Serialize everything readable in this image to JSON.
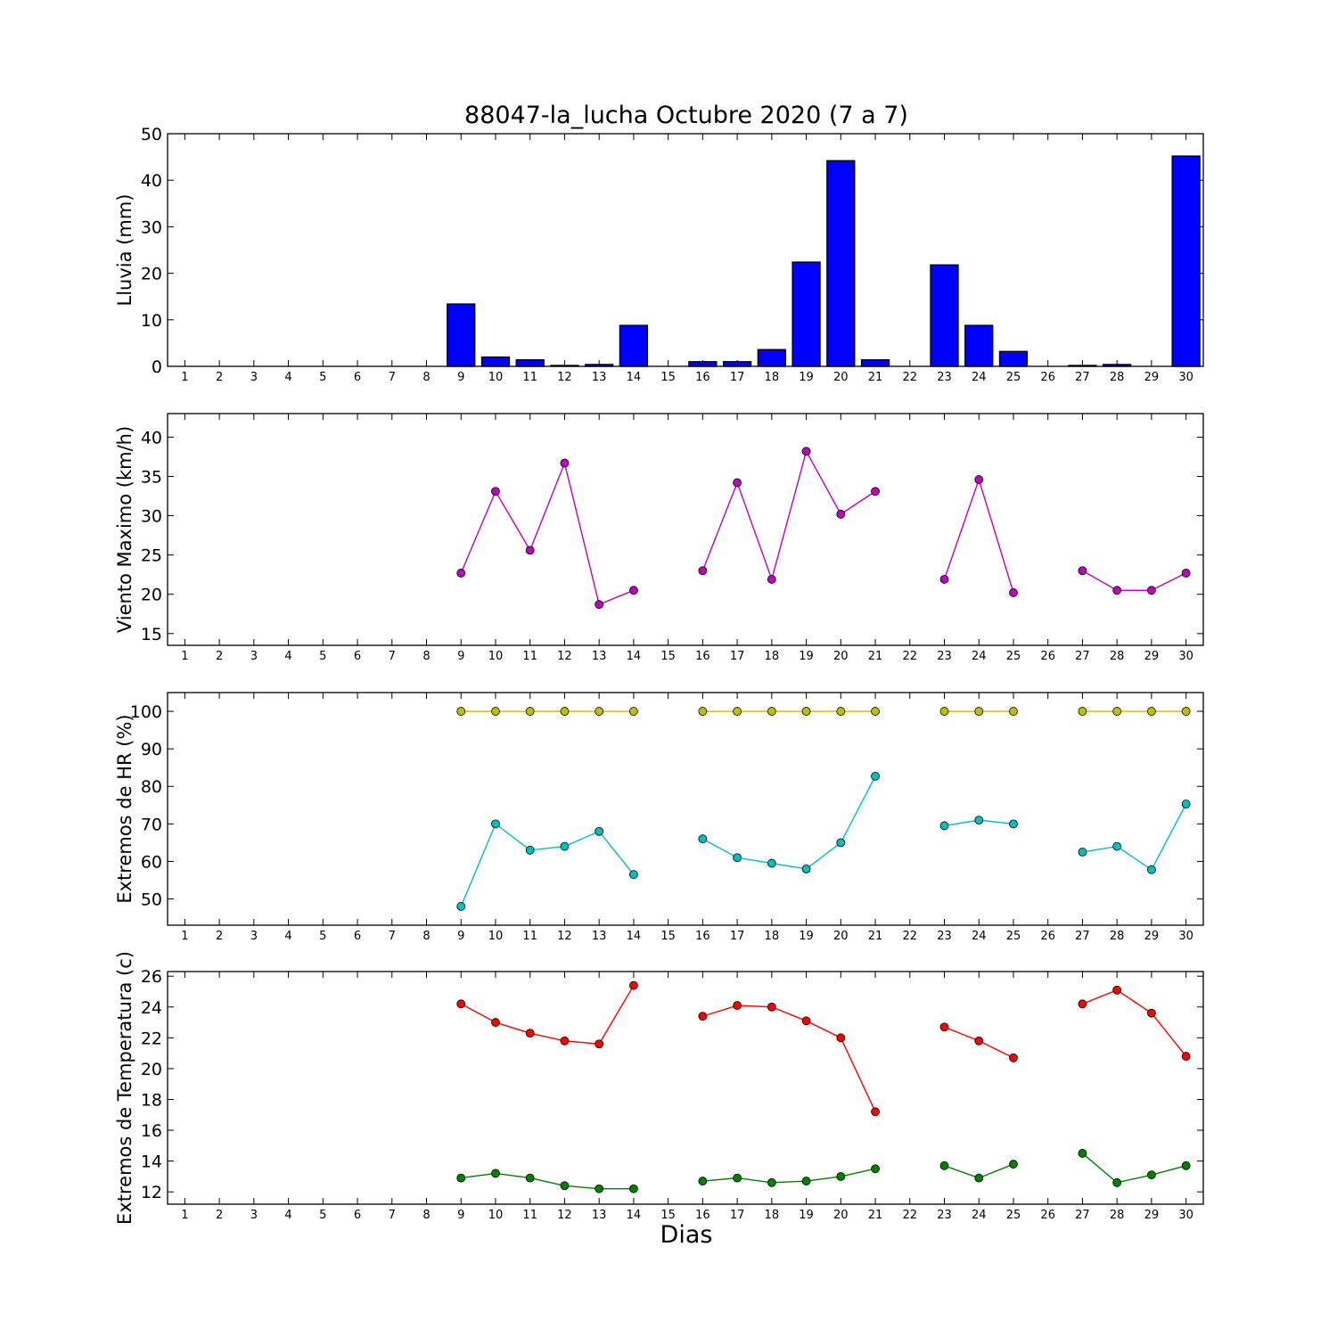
{
  "title": "88047-la_lucha Octubre 2020  (7 a 7)",
  "xlabel": "Dias",
  "chart_data": [
    {
      "type": "bar",
      "ylabel": "Lluvia (mm)",
      "ylim": [
        0,
        50
      ],
      "yticks": [
        0,
        10,
        20,
        30,
        40,
        50
      ],
      "x": [
        1,
        2,
        3,
        4,
        5,
        6,
        7,
        8,
        9,
        10,
        11,
        12,
        13,
        14,
        15,
        16,
        17,
        18,
        19,
        20,
        21,
        22,
        23,
        24,
        25,
        26,
        27,
        28,
        29,
        30
      ],
      "xtick_labels": [
        "1",
        "2",
        "3",
        "4",
        "5",
        "6",
        "7",
        "8",
        "9",
        "10",
        "11",
        "12",
        "13",
        "14",
        "15",
        "16",
        "17",
        "18",
        "19",
        "20",
        "21",
        "22",
        "23",
        "24",
        "25",
        "26",
        "27",
        "28",
        "29",
        "30"
      ],
      "values": [
        0,
        0,
        0,
        0,
        0,
        0,
        0,
        0,
        13.4,
        2.0,
        1.4,
        0.2,
        0.4,
        8.8,
        0,
        1.0,
        1.0,
        3.6,
        22.4,
        44.2,
        1.4,
        0,
        21.8,
        8.8,
        3.2,
        0,
        0.2,
        0.4,
        0,
        45.2
      ],
      "color": "#0000ff"
    },
    {
      "type": "line",
      "ylabel": "Viento Maximo (km/h)",
      "ylim": [
        13.5,
        43
      ],
      "yticks": [
        15,
        20,
        25,
        30,
        35,
        40
      ],
      "x": [
        1,
        2,
        3,
        4,
        5,
        6,
        7,
        8,
        9,
        10,
        11,
        12,
        13,
        14,
        15,
        16,
        17,
        18,
        19,
        20,
        21,
        22,
        23,
        24,
        25,
        26,
        27,
        28,
        29,
        30
      ],
      "xtick_labels": [
        "1",
        "2",
        "3",
        "4",
        "5",
        "6",
        "7",
        "8",
        "9",
        "10",
        "11",
        "12",
        "13",
        "14",
        "15",
        "16",
        "17",
        "18",
        "19",
        "20",
        "21",
        "22",
        "23",
        "24",
        "25",
        "26",
        "27",
        "28",
        "29",
        "30"
      ],
      "series": [
        {
          "color": "#bf00bf",
          "values": [
            null,
            null,
            null,
            null,
            null,
            null,
            null,
            null,
            22.7,
            33.1,
            25.6,
            36.7,
            18.7,
            20.5,
            null,
            23.0,
            34.2,
            21.9,
            38.2,
            30.2,
            33.1,
            null,
            21.9,
            34.6,
            20.2,
            null,
            23.0,
            20.5,
            20.5,
            22.7
          ]
        }
      ]
    },
    {
      "type": "line",
      "ylabel": "Extremos de HR (%)",
      "ylim": [
        43,
        105
      ],
      "yticks": [
        50,
        60,
        70,
        80,
        90,
        100
      ],
      "x": [
        1,
        2,
        3,
        4,
        5,
        6,
        7,
        8,
        9,
        10,
        11,
        12,
        13,
        14,
        15,
        16,
        17,
        18,
        19,
        20,
        21,
        22,
        23,
        24,
        25,
        26,
        27,
        28,
        29,
        30
      ],
      "xtick_labels": [
        "1",
        "2",
        "3",
        "4",
        "5",
        "6",
        "7",
        "8",
        "9",
        "10",
        "11",
        "12",
        "13",
        "14",
        "15",
        "16",
        "17",
        "18",
        "19",
        "20",
        "21",
        "22",
        "23",
        "24",
        "25",
        "26",
        "27",
        "28",
        "29",
        "30"
      ],
      "series": [
        {
          "color": "#bfbf00",
          "values": [
            null,
            null,
            null,
            null,
            null,
            null,
            null,
            null,
            100,
            100,
            100,
            100,
            100,
            100,
            null,
            100,
            100,
            100,
            100,
            100,
            100,
            null,
            100,
            100,
            100,
            null,
            100,
            100,
            100,
            100
          ]
        },
        {
          "color": "#00bfbf",
          "values": [
            null,
            null,
            null,
            null,
            null,
            null,
            null,
            null,
            48,
            70,
            63,
            64,
            68,
            56.5,
            null,
            66,
            61,
            59.5,
            58,
            65,
            82.7,
            null,
            69.5,
            71,
            70,
            null,
            62.5,
            64,
            57.8,
            75.3
          ]
        }
      ]
    },
    {
      "type": "line",
      "ylabel": "Extremos de Temperatura (c)",
      "ylim": [
        11.2,
        26.3
      ],
      "yticks": [
        12,
        14,
        16,
        18,
        20,
        22,
        24,
        26
      ],
      "x": [
        1,
        2,
        3,
        4,
        5,
        6,
        7,
        8,
        9,
        10,
        11,
        12,
        13,
        14,
        15,
        16,
        17,
        18,
        19,
        20,
        21,
        22,
        23,
        24,
        25,
        26,
        27,
        28,
        29,
        30
      ],
      "xtick_labels": [
        "1",
        "2",
        "3",
        "4",
        "5",
        "6",
        "7",
        "8",
        "9",
        "10",
        "11",
        "12",
        "13",
        "14",
        "15",
        "16",
        "17",
        "18",
        "19",
        "20",
        "21",
        "22",
        "23",
        "24",
        "25",
        "26",
        "27",
        "28",
        "29",
        "30"
      ],
      "series": [
        {
          "color": "#ff0000",
          "values": [
            null,
            null,
            null,
            null,
            null,
            null,
            null,
            null,
            24.2,
            23.0,
            22.3,
            21.8,
            21.6,
            25.4,
            null,
            23.4,
            24.1,
            24.0,
            23.1,
            22.0,
            17.2,
            null,
            22.7,
            21.8,
            20.7,
            null,
            24.2,
            25.1,
            23.6,
            20.8
          ]
        },
        {
          "color": "#008000",
          "values": [
            null,
            null,
            null,
            null,
            null,
            null,
            null,
            null,
            12.9,
            13.2,
            12.9,
            12.4,
            12.2,
            12.2,
            null,
            12.7,
            12.9,
            12.6,
            12.7,
            13.0,
            13.5,
            null,
            13.7,
            12.9,
            13.8,
            null,
            14.5,
            12.6,
            13.1,
            13.7
          ]
        }
      ]
    }
  ]
}
